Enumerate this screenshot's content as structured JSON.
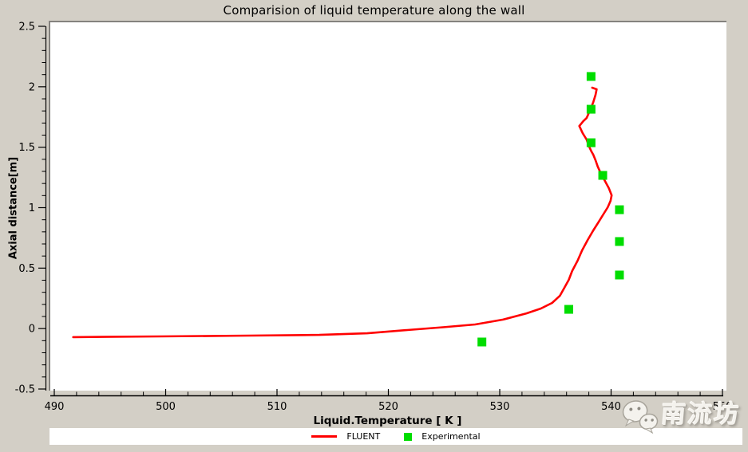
{
  "chart_data": {
    "type": "line",
    "title": "Comparision of liquid temperature along the wall",
    "xlabel": "Liquid.Temperature [ K ]",
    "ylabel": "Axial distance[m]",
    "xlim": [
      490,
      550
    ],
    "ylim": [
      -0.5,
      2.5
    ],
    "x_ticks": [
      490,
      500,
      510,
      520,
      530,
      540,
      550
    ],
    "x_tick_labels": [
      "490",
      "500",
      "510",
      "520",
      "530",
      "540",
      "550"
    ],
    "x_minor_step": 2,
    "y_ticks": [
      2.5,
      2,
      1.5,
      1,
      0.5,
      0,
      -0.5
    ],
    "y_tick_labels": [
      "2.5",
      "2",
      "1.5",
      "1",
      "0.5",
      "0",
      "-0.5"
    ],
    "y_minor_step": 0.1,
    "grid": false,
    "legend_position": "bottom",
    "series": [
      {
        "name": "FLUENT",
        "type": "line",
        "color": "#ff0000",
        "points": [
          [
            491.7,
            -0.071
          ],
          [
            499.5,
            -0.065
          ],
          [
            507.4,
            -0.058
          ],
          [
            513.8,
            -0.052
          ],
          [
            518.1,
            -0.039
          ],
          [
            521.7,
            -0.012
          ],
          [
            524.9,
            0.011
          ],
          [
            527.8,
            0.034
          ],
          [
            530.3,
            0.074
          ],
          [
            532.4,
            0.126
          ],
          [
            533.7,
            0.166
          ],
          [
            534.7,
            0.212
          ],
          [
            535.4,
            0.271
          ],
          [
            535.8,
            0.337
          ],
          [
            536.2,
            0.403
          ],
          [
            536.5,
            0.476
          ],
          [
            537.0,
            0.562
          ],
          [
            537.4,
            0.647
          ],
          [
            537.9,
            0.733
          ],
          [
            538.4,
            0.812
          ],
          [
            538.9,
            0.885
          ],
          [
            539.3,
            0.944
          ],
          [
            539.7,
            1.003
          ],
          [
            539.95,
            1.056
          ],
          [
            540.05,
            1.102
          ],
          [
            539.8,
            1.161
          ],
          [
            539.45,
            1.221
          ],
          [
            539.1,
            1.28
          ],
          [
            538.8,
            1.339
          ],
          [
            538.6,
            1.392
          ],
          [
            538.4,
            1.438
          ],
          [
            538.2,
            1.471
          ],
          [
            538.0,
            1.511
          ],
          [
            537.8,
            1.564
          ],
          [
            537.45,
            1.616
          ],
          [
            537.15,
            1.675
          ],
          [
            537.5,
            1.715
          ],
          [
            537.8,
            1.741
          ],
          [
            538.15,
            1.814
          ],
          [
            538.4,
            1.873
          ],
          [
            538.6,
            1.933
          ],
          [
            538.7,
            1.979
          ],
          [
            538.3,
            1.992
          ]
        ]
      },
      {
        "name": "Experimental",
        "type": "scatter",
        "marker": "square",
        "color": "#00dd00",
        "points": [
          [
            538.2,
            2.085
          ],
          [
            538.2,
            1.814
          ],
          [
            538.2,
            1.537
          ],
          [
            539.25,
            1.267
          ],
          [
            540.75,
            0.983
          ],
          [
            540.75,
            0.72
          ],
          [
            540.75,
            0.443
          ],
          [
            536.2,
            0.159
          ],
          [
            528.4,
            -0.111
          ]
        ]
      }
    ]
  },
  "watermark": {
    "text": "南流坊",
    "icon": "wechat-icon"
  },
  "colors": {
    "background": "#d3cfc6",
    "plot_background": "#ffffff",
    "frame": "#84827e",
    "axis": "#000000",
    "fluent_line": "#ff0000",
    "experimental_marker": "#00dd00"
  }
}
